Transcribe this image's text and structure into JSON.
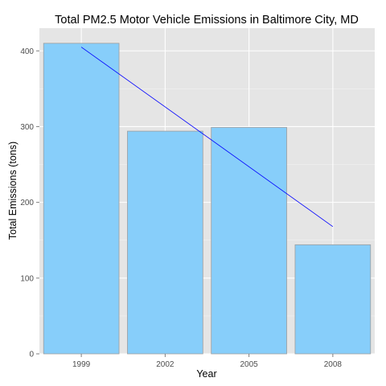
{
  "chart_data": {
    "type": "bar",
    "title": "Total PM2.5 Motor Vehicle Emissions in Baltimore City, MD",
    "xlabel": "Year",
    "ylabel": "Total Emissions (tons)",
    "categories": [
      "1999",
      "2002",
      "2005",
      "2008"
    ],
    "values": [
      410,
      294,
      299,
      144
    ],
    "ylim": [
      0,
      430
    ],
    "yticks": [
      0,
      100,
      200,
      300,
      400
    ],
    "grid": true,
    "legend": "none",
    "trend_line": {
      "start": [
        1999,
        405
      ],
      "end": [
        2008,
        168
      ]
    },
    "colors": {
      "bar_fill": "#87cefa",
      "bar_stroke": "#9e9e9e",
      "trend_line": "#0000ff",
      "panel_background": "#e5e5e5",
      "grid_major": "#ffffff",
      "grid_minor": "#f2f2f2"
    }
  }
}
